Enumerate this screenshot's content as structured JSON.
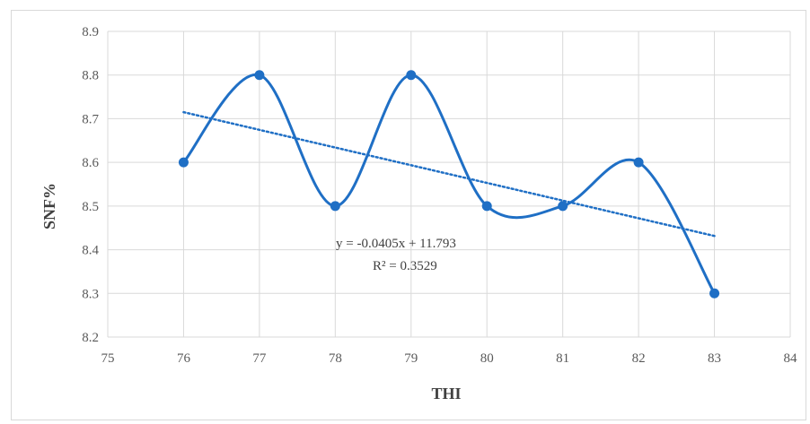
{
  "chart_data": {
    "type": "scatter",
    "title": "",
    "xlabel": "THI",
    "ylabel": "SNF%",
    "xlim": [
      75,
      84
    ],
    "ylim": [
      8.2,
      8.9
    ],
    "x_ticks": [
      "75",
      "76",
      "77",
      "78",
      "79",
      "80",
      "81",
      "82",
      "83",
      "84"
    ],
    "y_ticks": [
      "8.2",
      "8.3",
      "8.4",
      "8.5",
      "8.6",
      "8.7",
      "8.8",
      "8.9"
    ],
    "grid": true,
    "legend": "none",
    "series": [
      {
        "x": [
          76,
          77,
          78,
          79,
          80,
          81,
          82,
          83
        ],
        "y": [
          8.6,
          8.8,
          8.5,
          8.8,
          8.5,
          8.5,
          8.6,
          8.3
        ],
        "line": "smooth",
        "color": "#1f6fc5"
      }
    ],
    "trendline": {
      "type": "linear",
      "slope": -0.0405,
      "intercept": 11.793,
      "x_range": [
        76,
        83
      ],
      "style": "dotted",
      "color": "#1f6fc5"
    },
    "annotations": {
      "equation": "y = -0.0405x + 11.793",
      "r_squared": "R² = 0.3529"
    },
    "colors": {
      "gridline": "#d9d9d9",
      "tick_text": "#595959",
      "title_text": "#404040"
    }
  }
}
